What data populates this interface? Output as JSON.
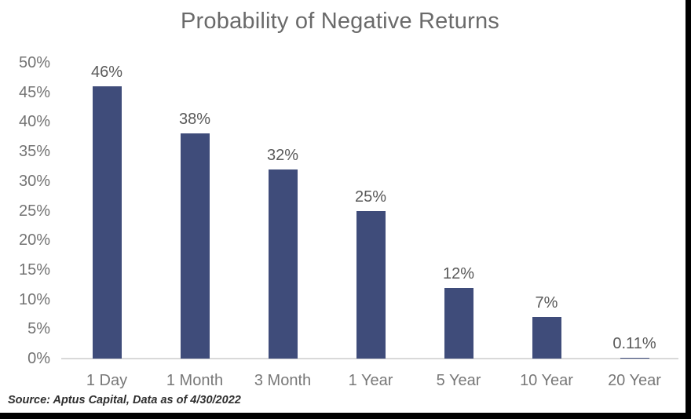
{
  "title": "Probability of Negative Returns",
  "source_note": "Source: Aptus Capital, Data as of 4/30/2022",
  "colors": {
    "bar": "#3F4C7A",
    "title_text": "#6a6a6a",
    "data_label_text": "#595959",
    "axis_tick_text": "#737373",
    "category_text": "#787878",
    "axis_line": "#d9d9d9",
    "frame_border": "#000000"
  },
  "chart_data": {
    "type": "bar",
    "title": "Probability of Negative Returns",
    "categories": [
      "1 Day",
      "1 Month",
      "3 Month",
      "1 Year",
      "5 Year",
      "10 Year",
      "20 Year"
    ],
    "values": [
      46,
      38,
      32,
      25,
      12,
      7,
      0.11
    ],
    "data_labels": [
      "46%",
      "38%",
      "32%",
      "25%",
      "12%",
      "7%",
      "0.11%"
    ],
    "y_ticks": [
      "50%",
      "45%",
      "40%",
      "35%",
      "30%",
      "25%",
      "20%",
      "15%",
      "10%",
      "5%",
      "0%"
    ],
    "xlabel": "",
    "ylabel": "",
    "ylim": [
      0,
      50
    ],
    "y_tick_step": 5,
    "grid": false,
    "legend": false,
    "data_labels_position": "above-bars"
  }
}
